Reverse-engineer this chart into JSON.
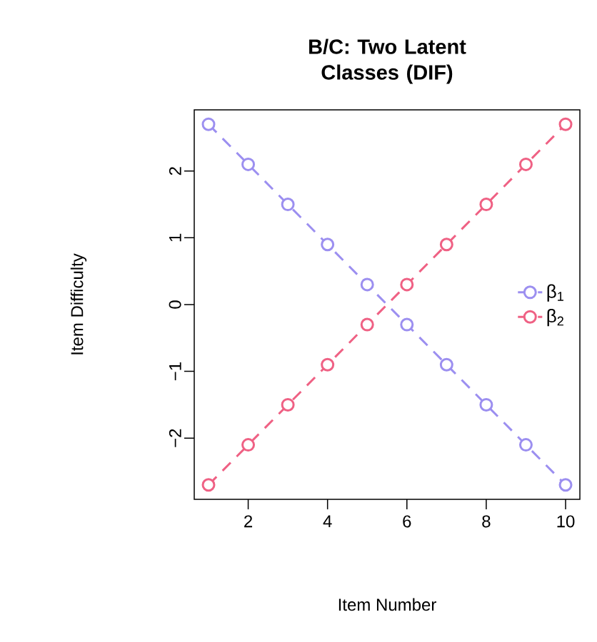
{
  "chart_data": {
    "type": "line",
    "title": "B/C: Two Latent Classes (DIF)",
    "xlabel": "Item Number",
    "ylabel": "Item Difficulty",
    "x": [
      1,
      2,
      3,
      4,
      5,
      6,
      7,
      8,
      9,
      10
    ],
    "series": [
      {
        "name": "β$_{1}$",
        "color": "#9c8ff0",
        "values": [
          2.7,
          2.1,
          1.5,
          0.9,
          0.3,
          -0.3,
          -0.9,
          -1.5,
          -2.1,
          -2.7
        ]
      },
      {
        "name": "β$_{2}$",
        "color": "#ef6184",
        "values": [
          -2.7,
          -2.1,
          -1.5,
          -0.9,
          -0.3,
          0.3,
          0.9,
          1.5,
          2.1,
          2.7
        ]
      }
    ],
    "xlim": [
      0.64,
      10.36
    ],
    "ylim": [
      -2.916,
      2.916
    ],
    "xticks": [
      2,
      4,
      6,
      8,
      10
    ],
    "yticks": [
      {
        "value": -2,
        "label": "−2"
      },
      {
        "value": -1,
        "label": "−1"
      },
      0,
      1,
      2
    ],
    "grid": false,
    "legend": "right",
    "marker": "circle",
    "line_style": "dashed"
  }
}
